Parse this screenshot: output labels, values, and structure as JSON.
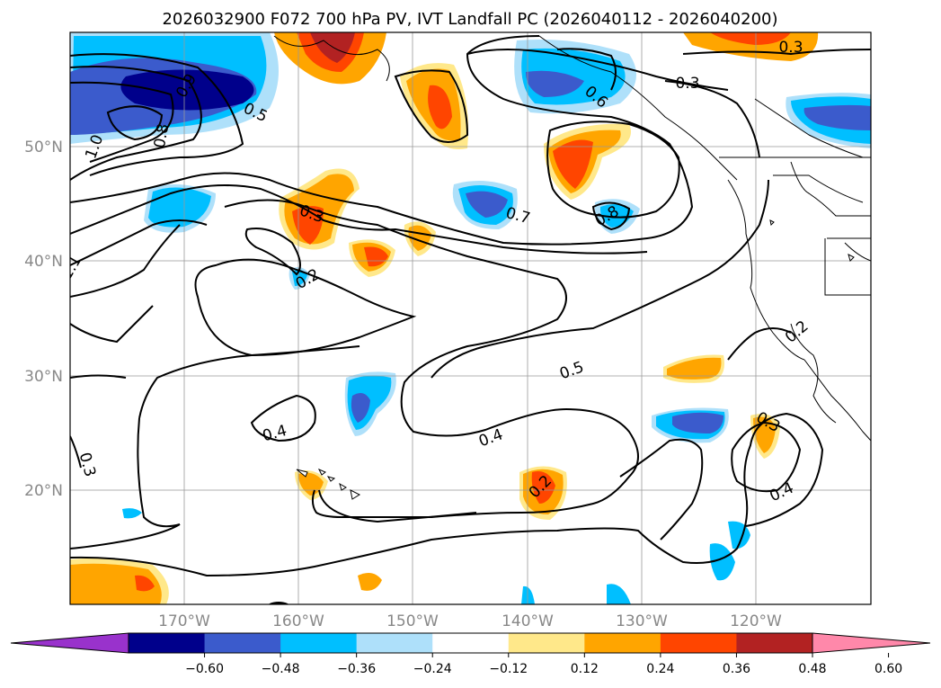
{
  "chart_data": {
    "type": "map",
    "title": "2026032900 F072 700 hPa PV, IVT Landfall PC (2026040112 - 2026040200)",
    "x_ticks": [
      "170°W",
      "160°W",
      "150°W",
      "140°W",
      "130°W",
      "120°W"
    ],
    "y_ticks": [
      "50°N",
      "40°N",
      "30°N",
      "20°N"
    ],
    "lon_range": [
      -180,
      -110
    ],
    "lat_range": [
      10,
      60
    ],
    "colorbar": {
      "ticks": [
        "−0.60",
        "−0.48",
        "−0.36",
        "−0.24",
        "−0.12",
        "0.12",
        "0.24",
        "0.36",
        "0.48",
        "0.60"
      ],
      "colors": [
        "#9932cc",
        "#00008b",
        "#3b5bcc",
        "#00bfff",
        "#aee0fa",
        "#ffffff",
        "#ffe88a",
        "#ffa500",
        "#ff4500",
        "#b22222",
        "#ff88aa"
      ]
    },
    "contour_labels": [
      "0.9",
      "0.8",
      "0.5",
      "1.0",
      "1.1",
      "0.6",
      "0.3",
      "0.7",
      "0.8",
      "0.3",
      "0.2",
      "0.2",
      "0.5",
      "0.4",
      "0.4",
      "0.3",
      "0.2",
      "0.3",
      "0.4"
    ]
  }
}
